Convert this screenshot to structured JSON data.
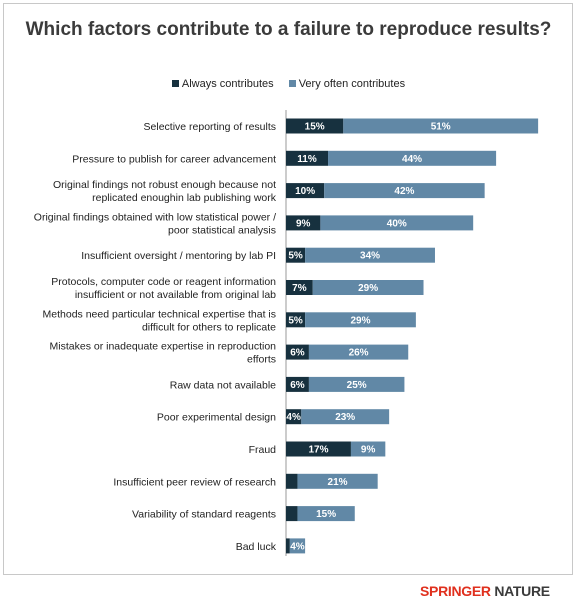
{
  "chart_data": {
    "type": "bar",
    "orientation": "horizontal",
    "stacked": true,
    "title": "Which factors contribute to a failure to reproduce results?",
    "legend_position": "top",
    "grid": false,
    "xlim": [
      0,
      70
    ],
    "categories": [
      [
        "Selective reporting of results"
      ],
      [
        "Pressure to publish for career advancement"
      ],
      [
        "Original findings not robust enough because not",
        "replicated enoughin lab publishing work"
      ],
      [
        "Original findings obtained with low statistical power /",
        "poor statistical analysis"
      ],
      [
        "Insufficient oversight / mentoring by lab PI"
      ],
      [
        "Protocols, computer code or reagent information",
        "insufficient or not available from original lab"
      ],
      [
        "Methods need particular technical expertise that is",
        "difficult for others to replicate"
      ],
      [
        "Mistakes or inadequate expertise in reproduction",
        "efforts"
      ],
      [
        "Raw data not available"
      ],
      [
        "Poor experimental design"
      ],
      [
        "Fraud"
      ],
      [
        "Insufficient peer review of research"
      ],
      [
        "Variability of standard reagents"
      ],
      [
        "Bad luck"
      ]
    ],
    "series": [
      {
        "name": "Always contributes",
        "color": "#17313f",
        "values": [
          15,
          11,
          10,
          9,
          5,
          7,
          5,
          6,
          6,
          4,
          17,
          3,
          3,
          1
        ],
        "labels": [
          "15%",
          "11%",
          "10%",
          "9%",
          "5%",
          "7%",
          "5%",
          "6%",
          "6%",
          "4%",
          "17%",
          "",
          "",
          ""
        ]
      },
      {
        "name": "Very often contributes",
        "color": "#6188a6",
        "values": [
          51,
          44,
          42,
          40,
          34,
          29,
          29,
          26,
          25,
          23,
          9,
          21,
          15,
          4
        ],
        "labels": [
          "51%",
          "44%",
          "42%",
          "40%",
          "34%",
          "29%",
          "29%",
          "26%",
          "25%",
          "23%",
          "9%",
          "21%",
          "15%",
          "4%"
        ]
      }
    ]
  },
  "brand": {
    "part1": "SPRINGER",
    "part2": " NATURE"
  }
}
